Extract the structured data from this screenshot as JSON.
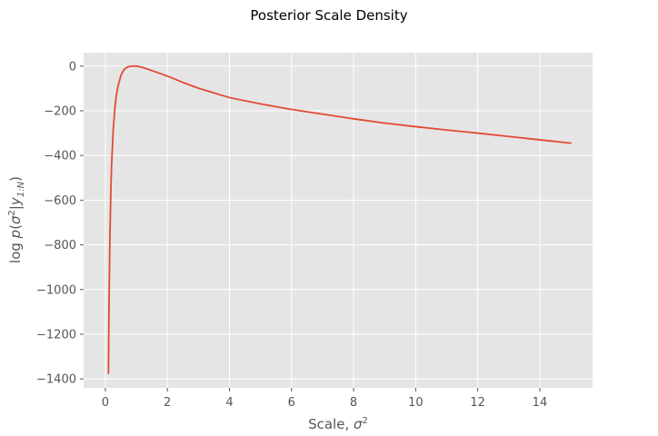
{
  "chart_data": {
    "type": "line",
    "title": "Posterior Scale Density",
    "xlabel": {
      "text": "Scale, ",
      "sym": "σ",
      "sup": "2"
    },
    "ylabel": {
      "prefix": "log ",
      "p": "p",
      "open": "(",
      "sym": "σ",
      "sup": "2",
      "bar": "|",
      "y": "y",
      "sub": "1:N",
      "close": ")"
    },
    "xlim": [
      -0.7,
      15.7
    ],
    "ylim": [
      -1440,
      60
    ],
    "xticks": [
      0,
      2,
      4,
      6,
      8,
      10,
      12,
      14
    ],
    "xtick_labels": [
      "0",
      "2",
      "4",
      "6",
      "8",
      "10",
      "12",
      "14"
    ],
    "yticks": [
      0,
      -200,
      -400,
      -600,
      -800,
      -1000,
      -1200,
      -1400
    ],
    "ytick_labels": [
      "0",
      "−200",
      "−400",
      "−600",
      "−800",
      "−1000",
      "−1200",
      "−1400"
    ],
    "grid": true,
    "style": {
      "background": "#e5e5e5",
      "grid_color": "#ffffff",
      "line_color": "#e24a33"
    },
    "series": [
      {
        "x": [
          0.1,
          0.12,
          0.15,
          0.18,
          0.2,
          0.25,
          0.3,
          0.35,
          0.4,
          0.5,
          0.6,
          0.7,
          0.8,
          0.9,
          1.0,
          1.2,
          1.5,
          2.0,
          2.5,
          3.0,
          4.0,
          5.0,
          6.0,
          7.0,
          8.0,
          9.0,
          10.0,
          11.0,
          12.0,
          13.0,
          14.0,
          15.0
        ],
        "y": [
          -1375,
          -1050,
          -745,
          -545,
          -450,
          -295,
          -200,
          -135,
          -95,
          -42,
          -16,
          -5,
          -1,
          0,
          0,
          -6,
          -20,
          -45,
          -73,
          -99,
          -141,
          -169,
          -194,
          -215,
          -236,
          -255,
          -271,
          -286,
          -300,
          -315,
          -330,
          -345
        ]
      }
    ]
  }
}
